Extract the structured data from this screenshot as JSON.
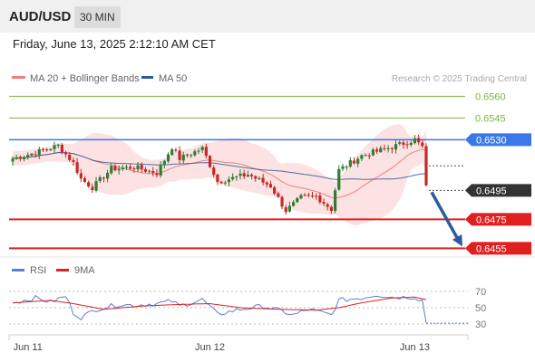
{
  "header": {
    "pair": "AUD/USD",
    "timeframe": "30 MIN",
    "timestamp": "Friday, June 13, 2025 2:12:10 AM CET"
  },
  "colors": {
    "ma20": "#f08080",
    "ma50": "#2c5aa0",
    "bollinger_fill": "#fbd8d8",
    "green_level": "#7cb342",
    "blue_level": "#3b78e7",
    "red_level": "#e02020",
    "current_price_bg": "#333333",
    "candle_up": "#2e7d32",
    "candle_down": "#c62828",
    "arrow": "#2c5aa0",
    "rsi": "#5b7fd4",
    "ma9": "#e02020"
  },
  "chart_data": [
    {
      "type": "candlestick",
      "legend": [
        "MA 20 + Bollinger Bands",
        "MA 50"
      ],
      "credit": "Research © 2025 Trading Central",
      "ylim": [
        0.64515,
        0.6564
      ],
      "x_ticks": [
        {
          "label": "Jun 11",
          "index": 4
        },
        {
          "label": "Jun 12",
          "index": 52
        },
        {
          "label": "Jun 13",
          "index": 106
        }
      ],
      "levels": [
        {
          "value": 0.656,
          "label": "0.6560",
          "style": "green"
        },
        {
          "value": 0.6545,
          "label": "0.6545",
          "style": "green"
        },
        {
          "value": 0.653,
          "label": "0.6530",
          "style": "blue"
        },
        {
          "value": 0.6495,
          "label": "0.6495",
          "style": "current"
        },
        {
          "value": 0.6475,
          "label": "0.6475",
          "style": "red"
        },
        {
          "value": 0.6455,
          "label": "0.6455",
          "style": "red"
        }
      ],
      "forecast_arrow": {
        "from": 0.6495,
        "to": 0.6455
      },
      "anchors": [
        [
          0,
          0.6517
        ],
        [
          6,
          0.6521
        ],
        [
          12,
          0.6526
        ],
        [
          16,
          0.6514
        ],
        [
          18,
          0.6503
        ],
        [
          21,
          0.6497
        ],
        [
          26,
          0.651
        ],
        [
          32,
          0.6511
        ],
        [
          38,
          0.6507
        ],
        [
          42,
          0.6525
        ],
        [
          44,
          0.6517
        ],
        [
          50,
          0.6524
        ],
        [
          54,
          0.6501
        ],
        [
          62,
          0.6506
        ],
        [
          68,
          0.6498
        ],
        [
          72,
          0.6481
        ],
        [
          76,
          0.649
        ],
        [
          80,
          0.6491
        ],
        [
          84,
          0.6482
        ],
        [
          86,
          0.6509
        ],
        [
          92,
          0.6519
        ],
        [
          100,
          0.6525
        ],
        [
          106,
          0.653
        ],
        [
          108,
          0.6525
        ],
        [
          109,
          0.6497
        ]
      ]
    },
    {
      "type": "line",
      "legend": [
        "RSI",
        "9MA"
      ],
      "ylim": [
        30,
        70
      ],
      "y_ticks": [
        70,
        50,
        30
      ],
      "series": [
        {
          "name": "RSI",
          "anchors": [
            [
              0,
              56
            ],
            [
              6,
              62
            ],
            [
              10,
              57
            ],
            [
              14,
              64
            ],
            [
              16,
              44
            ],
            [
              18,
              38
            ],
            [
              22,
              48
            ],
            [
              28,
              54
            ],
            [
              32,
              53
            ],
            [
              38,
              55
            ],
            [
              42,
              58
            ],
            [
              44,
              52
            ],
            [
              50,
              60
            ],
            [
              54,
              42
            ],
            [
              60,
              48
            ],
            [
              66,
              52
            ],
            [
              70,
              47
            ],
            [
              74,
              41
            ],
            [
              78,
              48
            ],
            [
              84,
              41
            ],
            [
              86,
              59
            ],
            [
              92,
              62
            ],
            [
              96,
              66
            ],
            [
              100,
              63
            ],
            [
              106,
              63
            ],
            [
              108,
              59
            ],
            [
              109,
              31
            ]
          ]
        },
        {
          "name": "9MA",
          "anchors": [
            [
              0,
              56
            ],
            [
              10,
              59
            ],
            [
              16,
              55
            ],
            [
              24,
              48
            ],
            [
              34,
              52
            ],
            [
              44,
              54
            ],
            [
              52,
              55
            ],
            [
              60,
              50
            ],
            [
              70,
              48
            ],
            [
              80,
              47
            ],
            [
              86,
              50
            ],
            [
              92,
              56
            ],
            [
              100,
              62
            ],
            [
              106,
              63
            ],
            [
              109,
              60
            ]
          ]
        }
      ]
    }
  ]
}
